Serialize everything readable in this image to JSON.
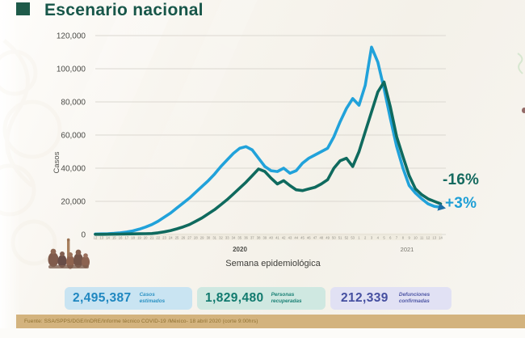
{
  "page": {
    "title": "Escenario nacional"
  },
  "chart_data": {
    "type": "line",
    "title": "Escenario nacional",
    "xlabel": "Semana epidemiológica",
    "ylabel": "Casos",
    "ylim": [
      0,
      120000
    ],
    "grid": true,
    "legend": "none",
    "yticks": [
      0,
      20000,
      40000,
      60000,
      80000,
      100000,
      120000
    ],
    "ytick_labels": [
      "0",
      "20,000",
      "40,000",
      "60,000",
      "80,000",
      "100,000",
      "120,000"
    ],
    "x_week_labels": [
      "12",
      "13",
      "14",
      "15",
      "16",
      "17",
      "18",
      "19",
      "20",
      "21",
      "22",
      "23",
      "24",
      "25",
      "26",
      "27",
      "28",
      "29",
      "30",
      "31",
      "32",
      "33",
      "34",
      "35",
      "36",
      "37",
      "38",
      "39",
      "40",
      "41",
      "42",
      "43",
      "44",
      "45",
      "46",
      "47",
      "48",
      "49",
      "50",
      "51",
      "52",
      "53",
      "1",
      "2",
      "3",
      "4",
      "5",
      "6",
      "7",
      "8",
      "9",
      "10",
      "11",
      "12",
      "13",
      "14"
    ],
    "year_labels": [
      {
        "text": "2020"
      },
      {
        "text": "2021"
      }
    ],
    "series": [
      {
        "name": "serie-azul-casos-estimados",
        "color": "#21a2da",
        "values": [
          300,
          400,
          500,
          700,
          1000,
          1500,
          2200,
          3200,
          4500,
          6000,
          8000,
          10500,
          13000,
          16000,
          19000,
          22000,
          25500,
          29000,
          32500,
          36500,
          41000,
          45000,
          49000,
          52000,
          53000,
          51000,
          46000,
          41000,
          38500,
          38000,
          40000,
          37000,
          38500,
          43000,
          46000,
          48000,
          50000,
          52000,
          59000,
          68000,
          76000,
          82000,
          78000,
          90000,
          113000,
          104000,
          88000,
          70000,
          53000,
          40000,
          29500,
          25000,
          21500,
          18500,
          17000,
          16500
        ]
      },
      {
        "name": "serie-verde-oscuro",
        "color": "#0f6a5e",
        "values": [
          100,
          120,
          150,
          200,
          250,
          320,
          400,
          450,
          500,
          600,
          1000,
          1600,
          2400,
          3400,
          4600,
          6000,
          8000,
          10000,
          12500,
          15000,
          18000,
          21000,
          24500,
          28000,
          31500,
          35500,
          39500,
          38000,
          34000,
          30500,
          32500,
          29500,
          27000,
          26500,
          27500,
          28500,
          30500,
          33000,
          40000,
          44500,
          46000,
          41000,
          50000,
          62000,
          74000,
          86000,
          92000,
          77000,
          59000,
          47000,
          35500,
          27500,
          24000,
          21500,
          20000,
          18500
        ]
      }
    ],
    "annotations": [
      {
        "text": "-16%",
        "color": "#156a5f"
      },
      {
        "text": "+3%",
        "color": "#1f9fd6"
      }
    ]
  },
  "stats": {
    "boxes": [
      {
        "value": "2,495,387",
        "label": "Casos estimados",
        "bg": "#c9e4f2",
        "color": "#1f87c0"
      },
      {
        "value": "1,829,480",
        "label": "Personas recuperadas",
        "bg": "#cfe8e1",
        "color": "#117a6e"
      },
      {
        "value": "212,339",
        "label": "Defunciones confirmadas",
        "bg": "#e1e1f4",
        "color": "#454fa0"
      }
    ]
  },
  "footer": {
    "source": "Fuente: SSA/SPPS/DGE/InDRE/Informe técnico COVID-19 /México- 18 abril 2020 (corte 9:00hrs)"
  }
}
